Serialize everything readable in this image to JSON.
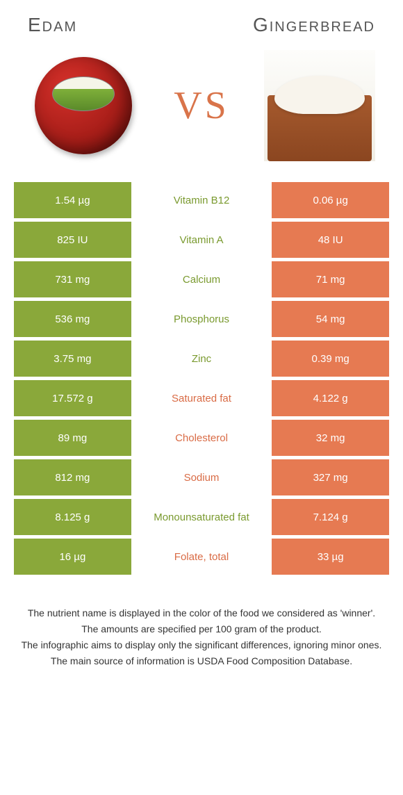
{
  "colors": {
    "left": "#8aa83a",
    "right": "#e67a52",
    "left_text": "#7a9a2f",
    "right_text": "#d96b45",
    "vs": "#d9744a"
  },
  "header": {
    "left_title": "Edam",
    "right_title": "Gingerbread",
    "vs": "VS"
  },
  "rows": [
    {
      "left": "1.54 µg",
      "mid": "Vitamin B12",
      "right": "0.06 µg",
      "winner": "left"
    },
    {
      "left": "825 IU",
      "mid": "Vitamin A",
      "right": "48 IU",
      "winner": "left"
    },
    {
      "left": "731 mg",
      "mid": "Calcium",
      "right": "71 mg",
      "winner": "left"
    },
    {
      "left": "536 mg",
      "mid": "Phosphorus",
      "right": "54 mg",
      "winner": "left"
    },
    {
      "left": "3.75 mg",
      "mid": "Zinc",
      "right": "0.39 mg",
      "winner": "left"
    },
    {
      "left": "17.572 g",
      "mid": "Saturated fat",
      "right": "4.122 g",
      "winner": "right"
    },
    {
      "left": "89 mg",
      "mid": "Cholesterol",
      "right": "32 mg",
      "winner": "right"
    },
    {
      "left": "812 mg",
      "mid": "Sodium",
      "right": "327 mg",
      "winner": "right"
    },
    {
      "left": "8.125 g",
      "mid": "Monounsaturated fat",
      "right": "7.124 g",
      "winner": "left"
    },
    {
      "left": "16 µg",
      "mid": "Folate, total",
      "right": "33 µg",
      "winner": "right"
    }
  ],
  "footer": {
    "line1": "The nutrient name is displayed in the color of the food we considered as 'winner'.",
    "line2": "The amounts are specified per 100 gram of the product.",
    "line3": "The infographic aims to display only the significant differences, ignoring minor ones.",
    "line4": "The main source of information is USDA Food Composition Database."
  }
}
